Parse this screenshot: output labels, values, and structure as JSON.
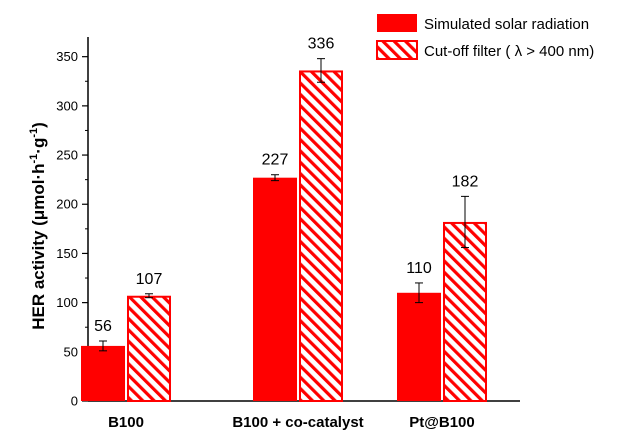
{
  "chart_data": {
    "type": "bar",
    "title": "",
    "xlabel": "",
    "ylabel": {
      "text": "HER activity (",
      "unit_mu": "μ",
      "unit_main": "mol·h",
      "unit_sup1": "-1",
      "unit_mid": "·g",
      "unit_sup2": "-1",
      "unit_close": ")"
    },
    "categories": [
      "B100",
      "B100 + co-catalyst",
      "Pt@B100"
    ],
    "ylim": [
      0,
      370
    ],
    "yticks": [
      0,
      50,
      100,
      150,
      200,
      250,
      300,
      350
    ],
    "grid": false,
    "legend_position": "top-right",
    "series": [
      {
        "name": "Simulated solar radiation",
        "style": "solid",
        "color": "#ff0000",
        "values": [
          56,
          227,
          110
        ],
        "errors": [
          5,
          3,
          10
        ],
        "labels": [
          "56",
          "227",
          "110"
        ]
      },
      {
        "name": "Cut-off filter ( λ > 400 nm)",
        "style": "hatched",
        "color": "#ff0000",
        "values": [
          107,
          336,
          182
        ],
        "errors": [
          2,
          12,
          26
        ],
        "labels": [
          "107",
          "336",
          "182"
        ]
      }
    ]
  }
}
